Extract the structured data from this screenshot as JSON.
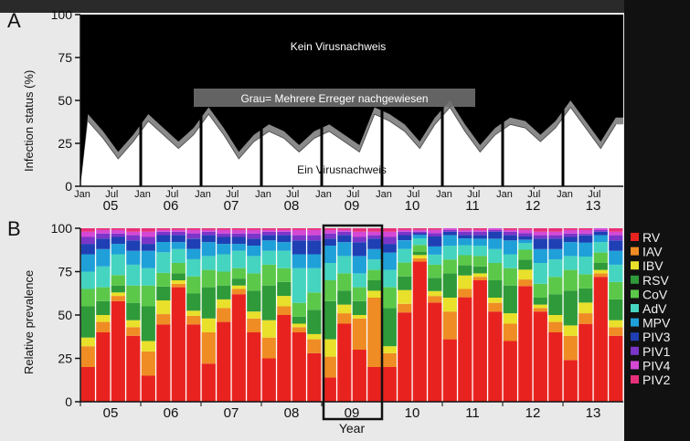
{
  "chart_data": [
    {
      "type": "area",
      "panel_label": "A",
      "ylabel": "Infection status (%)",
      "ylim": [
        0,
        100
      ],
      "yticks": [
        0,
        25,
        50,
        75,
        100
      ],
      "month_labels": [
        "Jan",
        "Jul"
      ],
      "year_labels": [
        "05",
        "06",
        "07",
        "08",
        "09",
        "10",
        "11",
        "12",
        "13"
      ],
      "annotations": {
        "top": "Kein Virusnachweis",
        "middle": "Grau= Mehrere Erreger nachgewiesen",
        "bottom": "Ein Virusnachweis"
      },
      "x": [
        "2005-01",
        "2005-04",
        "2005-07",
        "2005-10",
        "2006-01",
        "2006-04",
        "2006-07",
        "2006-10",
        "2007-01",
        "2007-04",
        "2007-07",
        "2007-10",
        "2008-01",
        "2008-04",
        "2008-07",
        "2008-10",
        "2009-01",
        "2009-04",
        "2009-07",
        "2009-10",
        "2010-01",
        "2010-04",
        "2010-07",
        "2010-10",
        "2011-01",
        "2011-04",
        "2011-07",
        "2011-10",
        "2012-01",
        "2012-04",
        "2012-07",
        "2012-10",
        "2013-01",
        "2013-04",
        "2013-07",
        "2013-10"
      ],
      "series": [
        {
          "values": [
            38,
            28,
            16,
            26,
            38,
            30,
            22,
            30,
            42,
            30,
            16,
            26,
            32,
            28,
            20,
            28,
            32,
            26,
            20,
            42,
            38,
            32,
            22,
            36,
            46,
            32,
            20,
            30,
            36,
            34,
            26,
            34,
            46,
            34,
            22,
            36
          ]
        },
        {
          "values": [
            42,
            32,
            20,
            30,
            42,
            34,
            26,
            34,
            46,
            34,
            20,
            30,
            36,
            32,
            24,
            32,
            36,
            30,
            24,
            46,
            42,
            36,
            26,
            40,
            50,
            36,
            24,
            34,
            40,
            38,
            30,
            38,
            50,
            38,
            26,
            40
          ]
        }
      ]
    },
    {
      "type": "bar",
      "panel_label": "B",
      "ylabel": "Relative prevalence",
      "xlabel": "Year",
      "ylim": [
        0,
        100
      ],
      "yticks": [
        0,
        25,
        50,
        75,
        100
      ],
      "year_labels": [
        "05",
        "06",
        "07",
        "08",
        "09",
        "10",
        "11",
        "12",
        "13"
      ],
      "highlight": "09",
      "x": [
        "2005-01",
        "2005-04",
        "2005-07",
        "2005-10",
        "2006-01",
        "2006-04",
        "2006-07",
        "2006-10",
        "2007-01",
        "2007-04",
        "2007-07",
        "2007-10",
        "2008-01",
        "2008-04",
        "2008-07",
        "2008-10",
        "2009-01",
        "2009-04",
        "2009-07",
        "2009-10",
        "2010-01",
        "2010-04",
        "2010-07",
        "2010-10",
        "2011-01",
        "2011-04",
        "2011-07",
        "2011-10",
        "2012-01",
        "2012-04",
        "2012-07",
        "2012-10",
        "2013-01",
        "2013-04",
        "2013-07",
        "2013-10"
      ],
      "series": [
        {
          "name": "RV",
          "color": "#e8231f",
          "values": [
            20,
            40,
            58,
            38,
            15,
            45,
            66,
            45,
            22,
            46,
            62,
            40,
            25,
            50,
            40,
            28,
            14,
            45,
            30,
            20,
            20,
            52,
            84,
            60,
            36,
            62,
            70,
            52,
            35,
            70,
            52,
            40,
            24,
            44,
            72,
            38
          ]
        },
        {
          "name": "IAV",
          "color": "#ef8c24",
          "values": [
            12,
            6,
            3,
            5,
            14,
            6,
            2,
            5,
            18,
            8,
            3,
            8,
            12,
            5,
            3,
            8,
            12,
            6,
            18,
            40,
            8,
            5,
            2,
            4,
            16,
            5,
            2,
            5,
            10,
            4,
            2,
            6,
            14,
            6,
            2,
            5
          ]
        },
        {
          "name": "IBV",
          "color": "#e8e02a",
          "values": [
            5,
            4,
            2,
            4,
            6,
            8,
            2,
            3,
            8,
            5,
            2,
            4,
            10,
            6,
            2,
            3,
            10,
            5,
            2,
            4,
            4,
            8,
            2,
            3,
            8,
            8,
            2,
            3,
            6,
            6,
            2,
            4,
            6,
            6,
            2,
            4
          ]
        },
        {
          "name": "RSV",
          "color": "#2f9a39",
          "values": [
            18,
            8,
            4,
            10,
            20,
            8,
            4,
            10,
            18,
            8,
            4,
            12,
            20,
            8,
            4,
            14,
            22,
            8,
            8,
            6,
            22,
            8,
            2,
            8,
            14,
            6,
            4,
            10,
            16,
            6,
            4,
            12,
            20,
            8,
            4,
            12
          ]
        },
        {
          "name": "CoV",
          "color": "#5cc84a",
          "values": [
            10,
            8,
            6,
            10,
            12,
            8,
            6,
            10,
            10,
            8,
            6,
            10,
            12,
            8,
            8,
            10,
            12,
            10,
            8,
            6,
            12,
            8,
            4,
            8,
            8,
            6,
            6,
            10,
            10,
            6,
            8,
            10,
            12,
            8,
            6,
            10
          ]
        },
        {
          "name": "AdV",
          "color": "#45d4c0",
          "values": [
            10,
            12,
            12,
            12,
            10,
            12,
            8,
            10,
            8,
            10,
            10,
            10,
            8,
            10,
            20,
            14,
            10,
            10,
            8,
            6,
            10,
            8,
            4,
            6,
            8,
            6,
            6,
            8,
            8,
            4,
            12,
            10,
            8,
            10,
            6,
            10
          ]
        },
        {
          "name": "MPV",
          "color": "#1fa0d8",
          "values": [
            10,
            10,
            6,
            8,
            10,
            6,
            4,
            6,
            8,
            6,
            4,
            6,
            6,
            5,
            8,
            8,
            10,
            8,
            10,
            6,
            10,
            5,
            2,
            5,
            6,
            4,
            4,
            6,
            8,
            2,
            8,
            6,
            8,
            8,
            4,
            8
          ]
        },
        {
          "name": "PIV3",
          "color": "#1f3fb5",
          "values": [
            6,
            6,
            4,
            6,
            4,
            4,
            4,
            6,
            4,
            4,
            4,
            4,
            3,
            4,
            8,
            8,
            4,
            4,
            8,
            6,
            5,
            3,
            1,
            6,
            2,
            2,
            2,
            4,
            3,
            2,
            6,
            6,
            3,
            4,
            2,
            6
          ]
        },
        {
          "name": "PIV1",
          "color": "#7b35c9",
          "values": [
            4,
            3,
            2,
            3,
            4,
            2,
            2,
            3,
            2,
            2,
            2,
            3,
            2,
            2,
            3,
            3,
            3,
            2,
            3,
            2,
            4,
            2,
            1,
            2,
            1,
            2,
            2,
            1,
            2,
            2,
            2,
            2,
            2,
            1,
            1,
            3
          ]
        },
        {
          "name": "PIV4",
          "color": "#d548d5",
          "values": [
            3,
            2,
            2,
            2,
            3,
            1,
            1,
            2,
            1,
            2,
            2,
            2,
            1,
            1,
            3,
            3,
            2,
            1,
            3,
            2,
            3,
            1,
            1,
            2,
            1,
            1,
            1,
            1,
            1,
            2,
            2,
            2,
            2,
            2,
            1,
            2
          ]
        },
        {
          "name": "PIV2",
          "color": "#e8307a",
          "values": [
            2,
            1,
            1,
            2,
            2,
            1,
            1,
            1,
            1,
            1,
            1,
            1,
            1,
            1,
            1,
            1,
            1,
            1,
            2,
            2,
            2,
            1,
            1,
            1,
            0,
            1,
            1,
            0,
            1,
            1,
            2,
            2,
            1,
            1,
            0,
            2
          ]
        }
      ]
    }
  ]
}
